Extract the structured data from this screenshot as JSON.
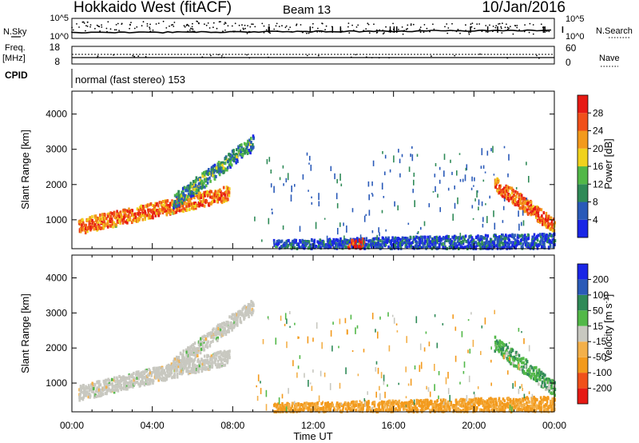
{
  "header": {
    "title": "Hokkaido West (fitACF)",
    "beam": "Beam 13",
    "date": "10/Jan/2016"
  },
  "params": {
    "nsky_label": "N.Sky",
    "nsearch_label": "N.Search",
    "noise_ticks_left": [
      "10^5",
      "10^0"
    ],
    "noise_ticks_right": [
      "10^5",
      "10^0"
    ],
    "freq_label": "Freq.",
    "freq_unit": "[MHz]",
    "freq_ticks": [
      "18",
      "8"
    ],
    "nave_label": "Nave",
    "nave_ticks": [
      "60",
      "0"
    ],
    "cpid_label": "CPID",
    "cpid_value": "normal (fast stereo) 153"
  },
  "colors": {
    "power_scale": [
      "#1a26e6",
      "#2a5ab8",
      "#2f8a57",
      "#52b848",
      "#f0d21e",
      "#f39a1c",
      "#f0501a",
      "#e61a14"
    ],
    "velocity_scale": [
      "#e61a14",
      "#f0501a",
      "#f39a1c",
      "#f3b04a",
      "#c8c8c0",
      "#52b848",
      "#2f8a57",
      "#2a5ab8",
      "#1a26e6"
    ],
    "ground_scatter": "#c8c8c0"
  },
  "chart_data": [
    {
      "type": "heatmap",
      "panel": "power",
      "xlabel": "Time UT",
      "ylabel": "Slant Range [km]",
      "xlim": [
        0,
        24
      ],
      "ylim": [
        180,
        4650
      ],
      "x_ticks": [
        "00:00",
        "04:00",
        "08:00",
        "12:00",
        "16:00",
        "20:00",
        "00:00"
      ],
      "y_ticks": [
        1000,
        2000,
        3000,
        4000
      ],
      "colorbar": {
        "label": "Power [dB]",
        "range": [
          0,
          32
        ],
        "ticks": [
          4,
          8,
          12,
          16,
          20,
          24,
          28
        ]
      },
      "scatter_bands": [
        {
          "t_start": 0.3,
          "t_end": 7.8,
          "range_start_km": 800,
          "range_end_km": 1750,
          "level_db": 26
        },
        {
          "t_start": 5.0,
          "t_end": 9.0,
          "range_start_km": 1500,
          "range_end_km": 3200,
          "level_db": 12
        },
        {
          "t_start": 21.0,
          "t_end": 24.0,
          "range_start_km": 2000,
          "range_end_km": 800,
          "level_db": 27
        },
        {
          "t_start": 10.0,
          "t_end": 24.0,
          "range_start_km": 200,
          "range_end_km": 400,
          "level_db": 6
        },
        {
          "t_start": 13.7,
          "t_end": 14.5,
          "range_start_km": 200,
          "range_end_km": 250,
          "level_db": 30
        }
      ]
    },
    {
      "type": "heatmap",
      "panel": "velocity",
      "xlabel": "Time UT",
      "ylabel": "Slant Range [km]",
      "xlim": [
        0,
        24
      ],
      "ylim": [
        180,
        4650
      ],
      "x_ticks": [
        "00:00",
        "04:00",
        "08:00",
        "12:00",
        "16:00",
        "20:00",
        "00:00"
      ],
      "y_ticks": [
        1000,
        2000,
        3000,
        4000
      ],
      "colorbar": {
        "label": "Velocity [m s^-1]",
        "ticks": [
          200,
          100,
          50,
          15,
          -15,
          -50,
          -100,
          -200
        ]
      },
      "scatter_bands": [
        {
          "t_start": 0.3,
          "t_end": 7.8,
          "range_start_km": 700,
          "range_end_km": 1750,
          "velocity": 0,
          "ground_scatter": true
        },
        {
          "t_start": 5.0,
          "t_end": 9.0,
          "range_start_km": 1500,
          "range_end_km": 3200,
          "velocity": 0,
          "ground_scatter": true
        },
        {
          "t_start": 21.0,
          "t_end": 24.0,
          "range_start_km": 2100,
          "range_end_km": 800,
          "velocity": 40
        },
        {
          "t_start": 10.0,
          "t_end": 24.0,
          "range_start_km": 200,
          "range_end_km": 400,
          "velocity": -60
        }
      ]
    }
  ]
}
